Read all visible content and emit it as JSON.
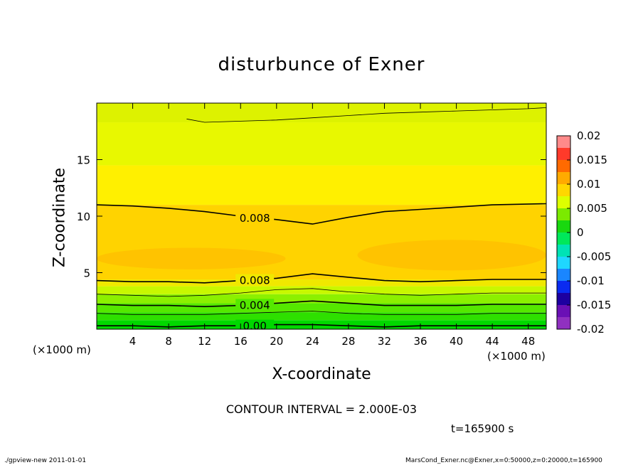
{
  "chart_data": {
    "type": "heatmap",
    "title": "disturbunce of Exner",
    "xlabel": "X-coordinate",
    "ylabel": "Z-coordinate",
    "x_unit": "(×1000 m)",
    "x_unit_right": "(×1000 m)",
    "xlim": [
      0,
      50
    ],
    "ylim": [
      0,
      20
    ],
    "x_ticks": [
      4,
      8,
      12,
      16,
      20,
      24,
      28,
      32,
      36,
      40,
      44,
      48
    ],
    "y_ticks": [
      5,
      10,
      15
    ],
    "colorbar": {
      "ticks": [
        "0.02",
        "0.015",
        "0.01",
        "0.005",
        "0",
        "-0.005",
        "-0.01",
        "-0.015",
        "-0.02"
      ],
      "range": [
        -0.02,
        0.02
      ],
      "colors": [
        "#ff8a8a",
        "#ff3a2a",
        "#ff6a00",
        "#ffaa00",
        "#ffd700",
        "#ddff00",
        "#7bea00",
        "#19d80f",
        "#00e85a",
        "#00e3b5",
        "#1fd7ff",
        "#1a86ff",
        "#0a2bf0",
        "#1d00a0",
        "#6a10b5",
        "#9030c0"
      ]
    },
    "bands": [
      {
        "z_bottom": 0.0,
        "z_top": 0.8,
        "level": "-0.001",
        "color": "#00d800"
      },
      {
        "z_bottom": 0.8,
        "z_top": 1.5,
        "level": "0.000",
        "color": "#2ee000"
      },
      {
        "z_bottom": 1.5,
        "z_top": 2.3,
        "level": "0.002",
        "color": "#55e800"
      },
      {
        "z_bottom": 2.3,
        "z_top": 3.1,
        "level": "0.004",
        "color": "#8cf000"
      },
      {
        "z_bottom": 3.1,
        "z_top": 3.8,
        "level": "0.006",
        "color": "#c8f800"
      },
      {
        "z_bottom": 3.8,
        "z_top": 4.4,
        "level": "0.007",
        "color": "#f0e800"
      },
      {
        "z_bottom": 4.4,
        "z_top": 11.0,
        "level": "0.009",
        "color": "#ffd300"
      },
      {
        "z_bottom": 11.0,
        "z_top": 14.5,
        "level": "0.007",
        "color": "#fff000"
      },
      {
        "z_bottom": 14.5,
        "z_top": 18.3,
        "level": "0.006",
        "color": "#e8f800"
      },
      {
        "z_bottom": 18.3,
        "z_top": 20.0,
        "level": "0.005",
        "color": "#ddf200"
      }
    ],
    "contours": [
      {
        "level": "0.008",
        "label": "0.008",
        "z": [
          11.0,
          10.9,
          10.7,
          10.4,
          10.0,
          9.7,
          9.3,
          9.9,
          10.4,
          10.6,
          10.8,
          11.0,
          11.1
        ],
        "x": [
          0,
          4,
          8,
          12,
          16,
          20,
          24,
          28,
          32,
          36,
          40,
          44,
          50
        ]
      },
      {
        "level": "0.008",
        "label": "0.008",
        "z": [
          4.3,
          4.2,
          4.2,
          4.1,
          4.3,
          4.5,
          4.9,
          4.6,
          4.3,
          4.2,
          4.3,
          4.4,
          4.4
        ],
        "x": [
          0,
          4,
          8,
          12,
          16,
          20,
          24,
          28,
          32,
          36,
          40,
          44,
          50
        ]
      },
      {
        "level": "0.006",
        "label": "",
        "z": [
          3.1,
          3.0,
          2.9,
          3.0,
          3.2,
          3.5,
          3.6,
          3.3,
          3.1,
          3.0,
          3.1,
          3.2,
          3.2
        ],
        "x": [
          0,
          4,
          8,
          12,
          16,
          20,
          24,
          28,
          32,
          36,
          40,
          44,
          50
        ]
      },
      {
        "level": "0.004",
        "label": "0.004",
        "z": [
          2.2,
          2.1,
          2.1,
          2.0,
          2.1,
          2.3,
          2.5,
          2.3,
          2.1,
          2.1,
          2.1,
          2.2,
          2.2
        ],
        "x": [
          0,
          4,
          8,
          12,
          16,
          20,
          24,
          28,
          32,
          36,
          40,
          44,
          50
        ]
      },
      {
        "level": "0.002",
        "label": "",
        "z": [
          1.4,
          1.3,
          1.3,
          1.3,
          1.4,
          1.5,
          1.6,
          1.4,
          1.3,
          1.3,
          1.3,
          1.4,
          1.4
        ],
        "x": [
          0,
          4,
          8,
          12,
          16,
          20,
          24,
          28,
          32,
          36,
          40,
          44,
          50
        ]
      },
      {
        "level": "0.00",
        "label": "0.00",
        "z": [
          0.3,
          0.3,
          0.2,
          0.3,
          0.3,
          0.4,
          0.4,
          0.3,
          0.2,
          0.3,
          0.3,
          0.3,
          0.3
        ],
        "x": [
          0,
          4,
          8,
          12,
          16,
          20,
          24,
          28,
          32,
          36,
          40,
          44,
          50
        ]
      },
      {
        "level": "0.006",
        "label": "",
        "z": [
          18.6,
          18.3,
          18.4,
          18.5,
          18.7,
          18.9,
          19.1,
          19.2,
          19.3,
          19.4,
          19.5,
          19.6
        ],
        "x": [
          10,
          12,
          16,
          20,
          24,
          28,
          32,
          36,
          40,
          44,
          48,
          50
        ]
      }
    ],
    "warm_patches": [
      {
        "x_start": 0,
        "x_end": 21,
        "z_bottom": 5.3,
        "z_top": 7.2,
        "color": "#ffbf00"
      },
      {
        "x_start": 29,
        "x_end": 50,
        "z_bottom": 5.2,
        "z_top": 7.9,
        "color": "#ffbf00"
      }
    ],
    "contour_interval": "CONTOUR INTERVAL = 2.000E-03",
    "time": "t=165900 s"
  },
  "footer": {
    "left": "./gpview-new   2011-01-01",
    "right": "MarsCond_Exner.nc@Exner,x=0:50000,z=0:20000,t=165900"
  }
}
